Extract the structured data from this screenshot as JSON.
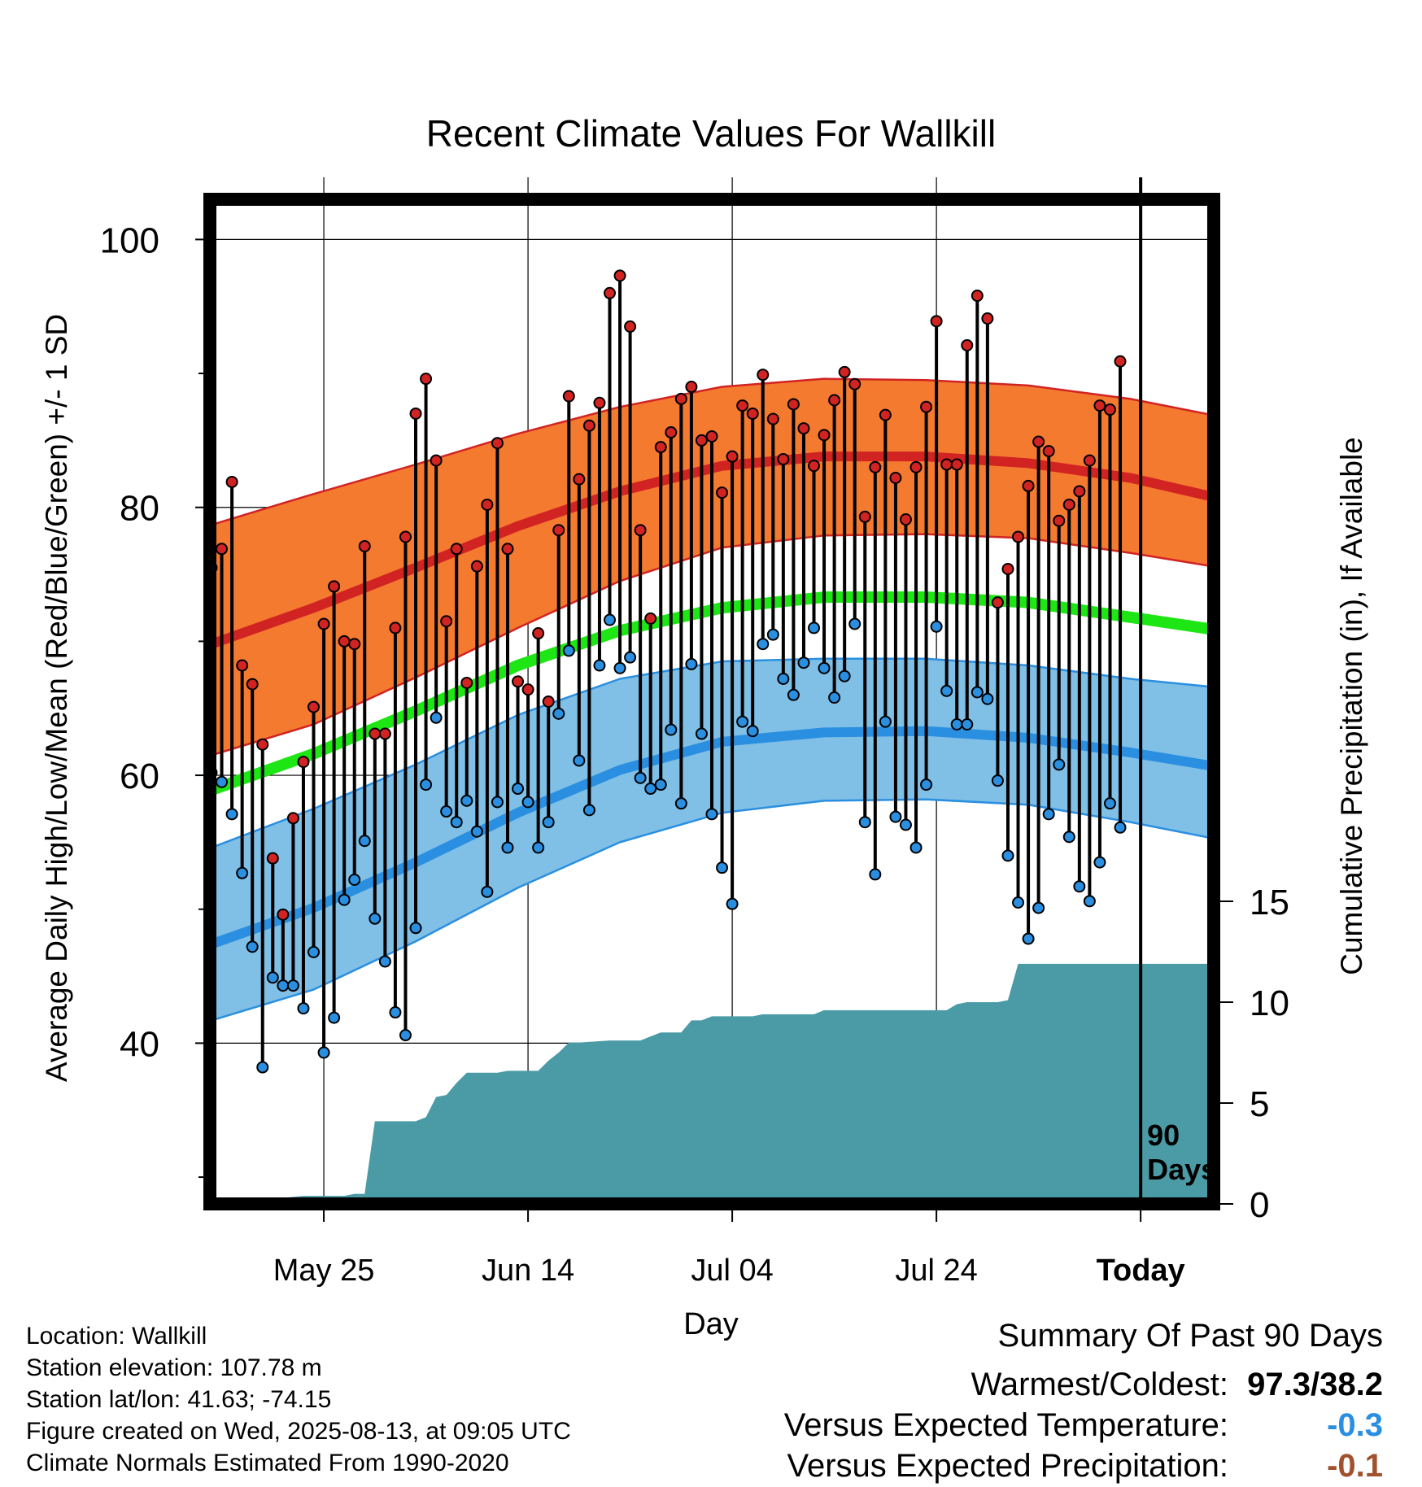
{
  "chart_data": {
    "type": "line",
    "title": "Recent Climate Values For Wallkill",
    "xlabel": "Day",
    "ylabel": "Average Daily High/Low/Mean (Red/Blue/Green) +/- 1 SD",
    "y2label": "Cumulative Precipitation (in), If Available",
    "ylim": [
      28,
      103
    ],
    "y2lim": [
      0,
      15
    ],
    "xlim": [
      -89,
      9
    ],
    "x_ticks": [
      {
        "x": -78,
        "label": "May 25"
      },
      {
        "x": -58,
        "label": "Jun 14"
      },
      {
        "x": -38,
        "label": "Jul 04"
      },
      {
        "x": -18,
        "label": "Jul 24"
      },
      {
        "x": 2,
        "label": "Today"
      }
    ],
    "y_ticks": [
      40,
      60,
      80,
      100
    ],
    "y2_ticks": [
      0,
      5,
      10,
      15
    ],
    "today_label": "90\nDays",
    "normals": {
      "x": [
        -89,
        -79,
        -69,
        -59,
        -49,
        -39,
        -29,
        -19,
        -9,
        1,
        9
      ],
      "high_mean": [
        69.8,
        72.5,
        75.5,
        78.6,
        81.2,
        83.1,
        83.8,
        83.8,
        83.3,
        82.2,
        80.8
      ],
      "high_sd_upper": [
        78.7,
        81.0,
        83.2,
        85.5,
        87.5,
        89.0,
        89.6,
        89.5,
        89.1,
        88.1,
        86.9
      ],
      "high_sd_lower": [
        61.5,
        63.8,
        67.3,
        71.0,
        74.5,
        77.0,
        77.9,
        78.0,
        77.7,
        76.6,
        75.6
      ],
      "mean": [
        58.9,
        61.6,
        64.8,
        68.2,
        70.8,
        72.5,
        73.3,
        73.3,
        72.9,
        71.8,
        70.9
      ],
      "low_mean": [
        47.4,
        50.1,
        53.5,
        57.2,
        60.4,
        62.5,
        63.2,
        63.3,
        62.8,
        61.7,
        60.7
      ],
      "low_sd_upper": [
        54.6,
        57.5,
        60.8,
        64.5,
        67.2,
        68.5,
        68.7,
        68.7,
        68.2,
        67.2,
        66.6
      ],
      "low_sd_lower": [
        41.7,
        44.0,
        47.6,
        51.6,
        55.0,
        57.2,
        58.1,
        58.2,
        57.8,
        56.5,
        55.3
      ]
    },
    "series": [
      {
        "name": "Daily High",
        "color": "#d22323",
        "x": [
          -89,
          -88,
          -87,
          -86,
          -85,
          -84,
          -83,
          -82,
          -81,
          -80,
          -79,
          -78,
          -77,
          -76,
          -75,
          -74,
          -73,
          -72,
          -71,
          -70,
          -69,
          -68,
          -67,
          -66,
          -65,
          -64,
          -63,
          -62,
          -61,
          -60,
          -59,
          -58,
          -57,
          -56,
          -55,
          -54,
          -53,
          -52,
          -51,
          -50,
          -49,
          -48,
          -47,
          -46,
          -45,
          -44,
          -43,
          -42,
          -41,
          -40,
          -39,
          -38,
          -37,
          -36,
          -35,
          -34,
          -33,
          -32,
          -31,
          -30,
          -29,
          -28,
          -27,
          -26,
          -25,
          -24,
          -23,
          -22,
          -21,
          -20,
          -19,
          -18,
          -17,
          -16,
          -15,
          -14,
          -13,
          -12,
          -11,
          -10,
          -9,
          -8,
          -7,
          -6,
          -5,
          -4,
          -3,
          -2,
          -1,
          0
        ],
        "values": [
          75.5,
          76.9,
          81.9,
          68.2,
          66.8,
          62.3,
          53.8,
          49.6,
          56.8,
          61.0,
          65.1,
          71.3,
          74.1,
          70.0,
          69.8,
          77.1,
          63.1,
          63.1,
          71.0,
          77.8,
          87.0,
          89.6,
          83.5,
          71.5,
          76.9,
          66.9,
          75.6,
          80.2,
          84.8,
          76.9,
          67.0,
          66.4,
          70.6,
          65.5,
          78.3,
          88.3,
          82.1,
          86.1,
          87.8,
          96.0,
          97.3,
          93.5,
          78.3,
          71.7,
          84.5,
          85.6,
          88.1,
          89.0,
          85.0,
          85.3,
          81.1,
          83.8,
          87.6,
          87.0,
          89.9,
          86.6,
          83.6,
          87.7,
          85.9,
          83.1,
          85.4,
          88.0,
          90.1,
          89.2,
          79.3,
          83.0,
          86.9,
          82.2,
          79.1,
          83.0,
          87.5,
          93.9,
          83.2,
          83.2,
          92.1,
          95.8,
          94.1,
          72.9,
          75.4,
          77.8,
          81.6,
          84.9,
          84.2,
          79.0,
          80.2,
          81.2,
          83.5,
          87.6,
          87.3,
          90.9
        ]
      },
      {
        "name": "Daily Low",
        "color": "#2a8fe0",
        "x": [
          -89,
          -88,
          -87,
          -86,
          -85,
          -84,
          -83,
          -82,
          -81,
          -80,
          -79,
          -78,
          -77,
          -76,
          -75,
          -74,
          -73,
          -72,
          -71,
          -70,
          -69,
          -68,
          -67,
          -66,
          -65,
          -64,
          -63,
          -62,
          -61,
          -60,
          -59,
          -58,
          -57,
          -56,
          -55,
          -54,
          -53,
          -52,
          -51,
          -50,
          -49,
          -48,
          -47,
          -46,
          -45,
          -44,
          -43,
          -42,
          -41,
          -40,
          -39,
          -38,
          -37,
          -36,
          -35,
          -34,
          -33,
          -32,
          -31,
          -30,
          -29,
          -28,
          -27,
          -26,
          -25,
          -24,
          -23,
          -22,
          -21,
          -20,
          -19,
          -18,
          -17,
          -16,
          -15,
          -14,
          -13,
          -12,
          -11,
          -10,
          -9,
          -8,
          -7,
          -6,
          -5,
          -4,
          -3,
          -2,
          -1,
          0
        ],
        "values": [
          60.2,
          59.5,
          57.1,
          52.7,
          47.2,
          38.2,
          44.9,
          44.3,
          44.3,
          42.6,
          46.8,
          39.3,
          41.9,
          50.7,
          52.2,
          55.1,
          49.3,
          46.1,
          42.3,
          40.6,
          48.6,
          59.3,
          64.3,
          57.3,
          56.5,
          58.1,
          55.8,
          51.3,
          58.0,
          54.6,
          59.0,
          58.0,
          54.6,
          56.5,
          64.6,
          69.3,
          61.1,
          57.4,
          68.2,
          71.6,
          68.0,
          68.8,
          59.8,
          59.0,
          59.3,
          63.4,
          57.9,
          68.3,
          63.1,
          57.1,
          53.1,
          50.4,
          64.0,
          63.3,
          69.8,
          70.5,
          67.2,
          66.0,
          68.4,
          71.0,
          68.0,
          65.8,
          67.4,
          71.3,
          56.5,
          52.6,
          64.0,
          56.9,
          56.3,
          54.6,
          59.3,
          71.1,
          66.3,
          63.8,
          63.8,
          66.2,
          65.7,
          59.6,
          54.0,
          50.5,
          47.8,
          50.1,
          57.1,
          60.8,
          55.4,
          51.7,
          50.6,
          53.5,
          57.9,
          56.1
        ]
      }
    ],
    "precipitation": {
      "name": "Cumulative Precipitation",
      "color": "#4a9ba6",
      "x": [
        -89,
        -83,
        -82,
        -80,
        -76,
        -75,
        -74,
        -73,
        -69,
        -68,
        -67,
        -66,
        -65,
        -64,
        -63,
        -62,
        -61,
        -60,
        -57,
        -56,
        -55,
        -54,
        -53,
        -50,
        -49,
        -47,
        -46,
        -45,
        -44,
        -43,
        -42,
        -41,
        -40,
        -36,
        -35,
        -30,
        -29,
        -28,
        -22,
        -21,
        -18,
        -17,
        -16,
        -15,
        -12,
        -11,
        -10,
        -8,
        -7,
        0,
        9
      ],
      "values": [
        0,
        0,
        0.3,
        0.4,
        0.4,
        0.5,
        0.5,
        4.1,
        4.1,
        4.3,
        5.3,
        5.4,
        6.0,
        6.5,
        6.5,
        6.5,
        6.5,
        6.6,
        6.6,
        7.1,
        7.5,
        8.0,
        8.0,
        8.1,
        8.1,
        8.1,
        8.3,
        8.5,
        8.5,
        8.5,
        9.1,
        9.1,
        9.3,
        9.3,
        9.4,
        9.4,
        9.6,
        9.6,
        9.6,
        9.6,
        9.6,
        9.6,
        9.9,
        10.0,
        10.0,
        10.1,
        11.9,
        11.9,
        11.9,
        11.9,
        11.9
      ]
    }
  },
  "footer": {
    "location": "Location: Wallkill",
    "elevation": "Station elevation: 107.78 m",
    "latlon": "Station lat/lon: 41.63; -74.15",
    "created": "Figure created on Wed, 2025-08-13, at 09:05 UTC",
    "normals": "Climate Normals Estimated From 1990-2020"
  },
  "summary": {
    "title": "Summary Of Past 90 Days",
    "warm_cold_label": "Warmest/Coldest:",
    "warm_cold_value": "97.3/38.2",
    "temp_label": "Versus Expected Temperature:",
    "temp_value": "-0.3",
    "temp_color": "#2a8fe0",
    "precip_label": "Versus Expected Precipitation:",
    "precip_value": "-0.1",
    "precip_color": "#a0522d"
  }
}
